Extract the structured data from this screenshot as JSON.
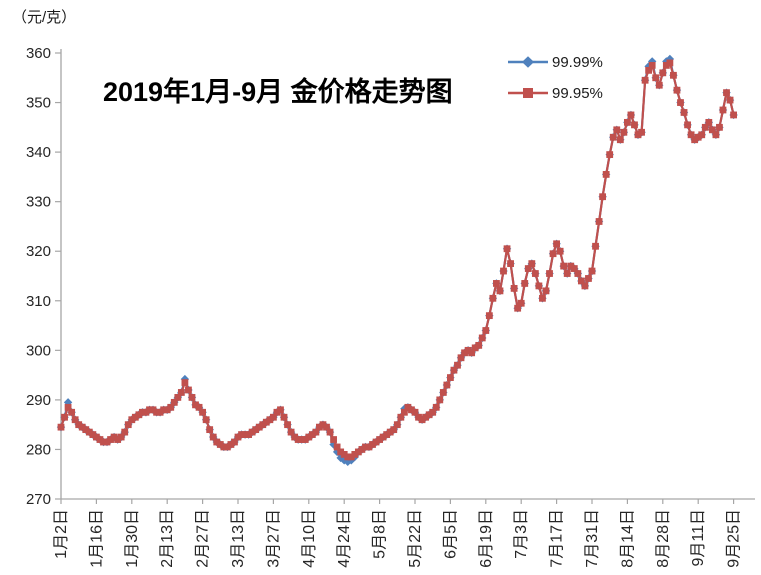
{
  "chart_data": {
    "type": "line",
    "title": "2019年1月-9月 金价格走势图",
    "ylabel": "（元/克）",
    "xlabel": "",
    "ylim": [
      270,
      360
    ],
    "ytick_interval": 10,
    "grid": false,
    "legend_position": "top-right",
    "points_per_tick": 10,
    "x_tick_labels": [
      "1月2日",
      "1月16日",
      "1月30日",
      "2月13日",
      "2月27日",
      "3月13日",
      "3月27日",
      "4月10日",
      "4月24日",
      "5月8日",
      "5月22日",
      "6月5日",
      "6月19日",
      "7月3日",
      "7月17日",
      "7月31日",
      "8月14日",
      "8月28日",
      "9月11日",
      "9月25日"
    ],
    "series": [
      {
        "name": "99.99%",
        "color": "#4F81BD",
        "marker": "diamond",
        "values": [
          284.5,
          286.5,
          289.5,
          287.5,
          286.0,
          285.0,
          284.5,
          284.0,
          283.5,
          283.0,
          282.5,
          282.0,
          281.5,
          281.5,
          282.0,
          282.5,
          282.0,
          282.5,
          283.5,
          285.0,
          286.0,
          286.5,
          287.0,
          287.5,
          287.5,
          288.0,
          288.0,
          287.5,
          287.5,
          288.0,
          288.0,
          288.5,
          289.5,
          290.5,
          291.5,
          294.2,
          292.0,
          290.5,
          289.0,
          288.5,
          287.5,
          286.0,
          284.0,
          282.5,
          281.5,
          281.0,
          280.5,
          280.5,
          281.0,
          281.5,
          282.5,
          283.0,
          283.0,
          283.0,
          283.5,
          284.0,
          284.5,
          285.0,
          285.5,
          286.0,
          286.5,
          287.5,
          288.0,
          286.5,
          285.0,
          283.5,
          282.5,
          282.0,
          282.0,
          282.0,
          282.5,
          283.0,
          283.5,
          284.5,
          285.0,
          284.5,
          283.5,
          281.0,
          279.5,
          278.3,
          277.8,
          277.5,
          277.8,
          278.5,
          279.5,
          280.0,
          280.5,
          280.5,
          281.0,
          281.5,
          282.0,
          282.5,
          283.0,
          283.5,
          284.0,
          285.0,
          286.5,
          288.2,
          288.5,
          288.0,
          287.5,
          286.5,
          286.0,
          286.5,
          287.0,
          287.5,
          288.5,
          290.0,
          291.5,
          293.0,
          294.5,
          296.0,
          297.0,
          298.5,
          299.5,
          300.0,
          299.5,
          300.5,
          301.0,
          302.5,
          304.0,
          307.0,
          310.5,
          313.5,
          312.0,
          316.0,
          320.5,
          317.5,
          312.5,
          308.5,
          309.5,
          313.5,
          316.5,
          317.5,
          315.5,
          313.0,
          310.5,
          312.0,
          315.5,
          319.5,
          321.5,
          320.0,
          317.0,
          315.5,
          317.0,
          316.5,
          315.5,
          314.0,
          313.0,
          314.5,
          316.0,
          321.0,
          326.0,
          331.0,
          335.5,
          339.5,
          343.0,
          344.5,
          342.5,
          344.0,
          346.0,
          347.5,
          345.5,
          343.5,
          344.0,
          354.5,
          357.3,
          358.3,
          355.0,
          353.5,
          356.0,
          358.3,
          358.8,
          355.5,
          352.5,
          350.0,
          348.0,
          345.5,
          343.5,
          342.5,
          343.0,
          343.5,
          345.0,
          346.0,
          344.5,
          343.5,
          345.0,
          348.5,
          352.0,
          350.5,
          347.5
        ]
      },
      {
        "name": "99.95%",
        "color": "#C0504D",
        "marker": "square",
        "values": [
          284.5,
          286.5,
          288.5,
          287.5,
          286.0,
          285.0,
          284.5,
          284.0,
          283.5,
          283.0,
          282.5,
          282.0,
          281.5,
          281.5,
          282.0,
          282.5,
          282.0,
          282.5,
          283.5,
          285.0,
          286.0,
          286.5,
          287.0,
          287.5,
          287.5,
          288.0,
          288.0,
          287.5,
          287.5,
          288.0,
          288.0,
          288.5,
          289.5,
          290.5,
          291.5,
          293.5,
          292.0,
          290.5,
          289.0,
          288.5,
          287.5,
          286.0,
          284.0,
          282.5,
          281.5,
          281.0,
          280.5,
          280.5,
          281.0,
          281.5,
          282.5,
          283.0,
          283.0,
          283.0,
          283.5,
          284.0,
          284.5,
          285.0,
          285.5,
          286.0,
          286.5,
          287.5,
          288.0,
          286.5,
          285.0,
          283.5,
          282.5,
          282.0,
          282.0,
          282.0,
          282.5,
          283.0,
          283.5,
          284.5,
          285.0,
          284.5,
          283.5,
          282.0,
          280.5,
          279.5,
          279.0,
          278.5,
          278.5,
          279.0,
          279.5,
          280.0,
          280.5,
          280.5,
          281.0,
          281.5,
          282.0,
          282.5,
          283.0,
          283.5,
          284.0,
          285.0,
          286.5,
          287.5,
          288.5,
          288.0,
          287.5,
          286.5,
          286.0,
          286.5,
          287.0,
          287.5,
          288.5,
          290.0,
          291.5,
          293.0,
          294.5,
          296.0,
          297.0,
          298.5,
          299.5,
          300.0,
          299.5,
          300.5,
          301.0,
          302.5,
          304.0,
          307.0,
          310.5,
          313.5,
          312.0,
          316.0,
          320.5,
          317.5,
          312.5,
          308.5,
          309.5,
          313.5,
          316.5,
          317.5,
          315.5,
          313.0,
          310.5,
          312.0,
          315.5,
          319.5,
          321.5,
          320.0,
          317.0,
          315.5,
          317.0,
          316.5,
          315.5,
          314.0,
          313.0,
          314.5,
          316.0,
          321.0,
          326.0,
          331.0,
          335.5,
          339.5,
          343.0,
          344.5,
          342.5,
          344.0,
          346.0,
          347.5,
          345.5,
          343.5,
          344.0,
          354.5,
          356.5,
          357.5,
          355.0,
          353.5,
          356.0,
          357.5,
          358.0,
          355.5,
          352.5,
          350.0,
          348.0,
          345.5,
          343.5,
          342.5,
          343.0,
          343.5,
          345.0,
          346.0,
          344.5,
          343.5,
          345.0,
          348.5,
          352.0,
          350.5,
          347.5
        ]
      }
    ]
  }
}
